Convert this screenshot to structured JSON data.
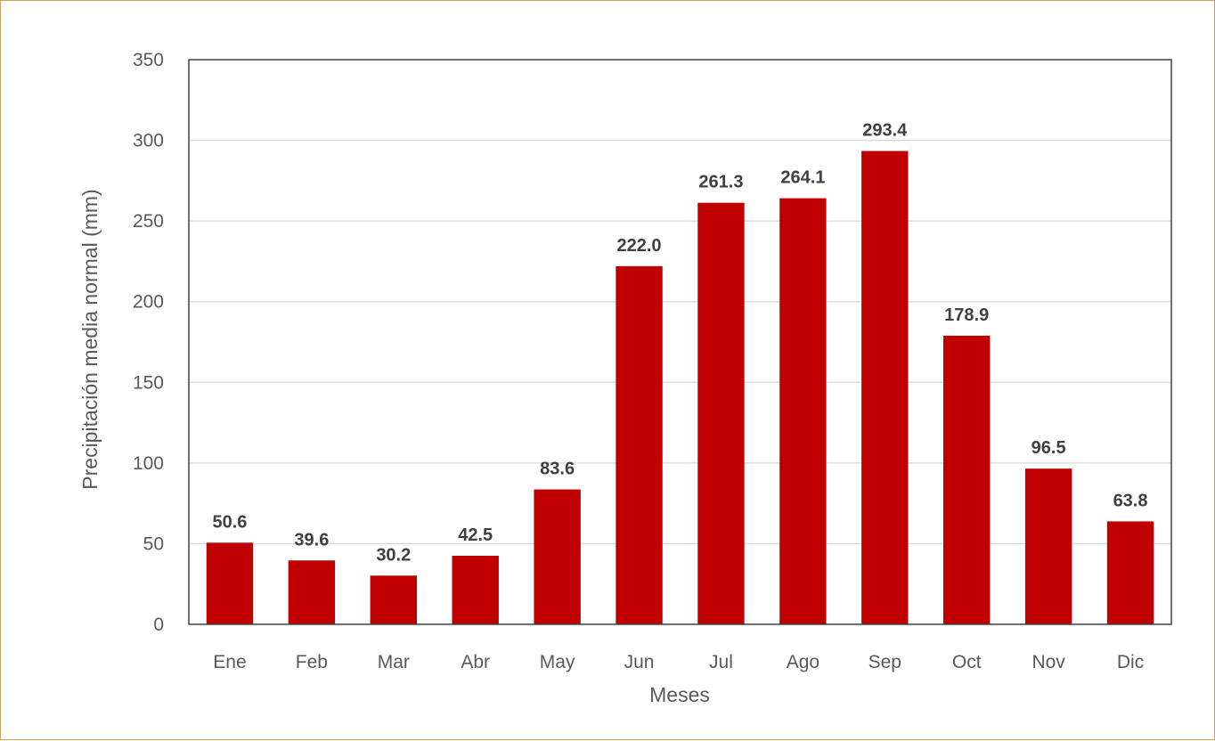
{
  "chart_data": {
    "type": "bar",
    "title": "",
    "xlabel": "Meses",
    "ylabel": "Precipitación media normal (mm)",
    "categories": [
      "Ene",
      "Feb",
      "Mar",
      "Abr",
      "May",
      "Jun",
      "Jul",
      "Ago",
      "Sep",
      "Oct",
      "Nov",
      "Dic"
    ],
    "values": [
      50.6,
      39.6,
      30.2,
      42.5,
      83.6,
      222.0,
      261.3,
      264.1,
      293.4,
      178.9,
      96.5,
      63.8
    ],
    "data_labels": [
      "50.6",
      "39.6",
      "30.2",
      "42.5",
      "83.6",
      "222.0",
      "261.3",
      "264.1",
      "293.4",
      "178.9",
      "96.5",
      "63.8"
    ],
    "ylim": [
      0,
      350
    ],
    "yticks": [
      0,
      50,
      100,
      150,
      200,
      250,
      300,
      350
    ],
    "grid": true,
    "legend": "none",
    "colors": {
      "bar": "#c00000",
      "grid": "#d9d9d9",
      "axis": "#404040",
      "frame_border": "#d2a05a"
    }
  }
}
